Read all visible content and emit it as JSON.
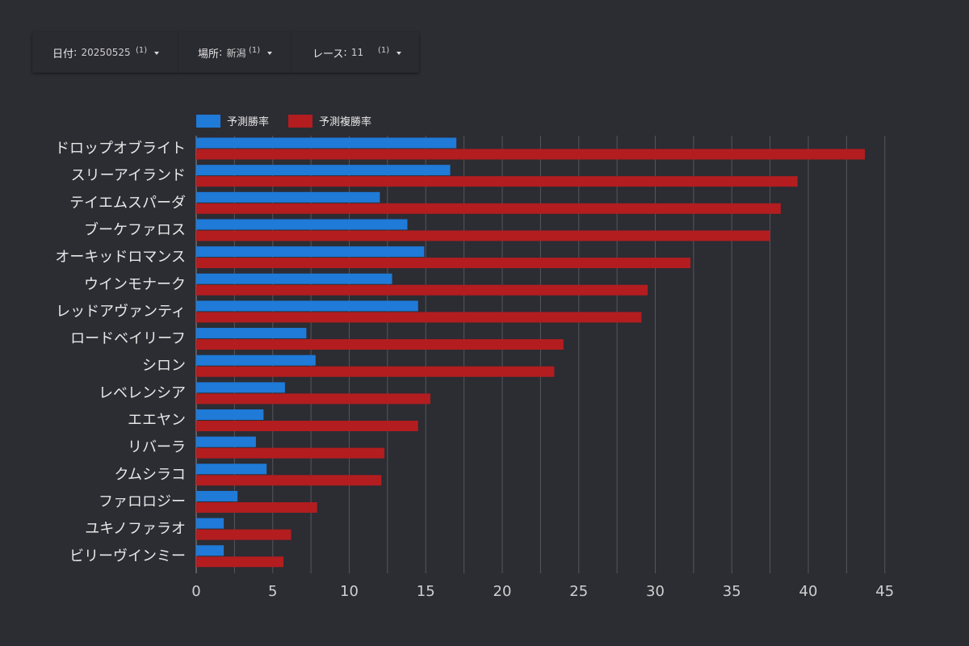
{
  "filters": [
    {
      "label": "日付",
      "value": "20250525",
      "count": "(1)"
    },
    {
      "label": "場所",
      "value": "新潟",
      "count": "(1)"
    },
    {
      "label": "レース",
      "value": "11",
      "count": "(1)"
    }
  ],
  "colors": {
    "background": "#2c2c33",
    "win": "#1f7ad8",
    "place": "#b31d1f",
    "grid": "#55555d"
  },
  "chart_data": {
    "type": "bar",
    "orientation": "horizontal",
    "title": "",
    "xlabel": "",
    "ylabel": "",
    "xlim": [
      0,
      45
    ],
    "xticks": [
      0,
      5,
      10,
      15,
      20,
      25,
      30,
      35,
      40,
      45
    ],
    "grid": true,
    "legend_position": "top-left",
    "categories": [
      "ドロップオブライト",
      "スリーアイランド",
      "テイエムスパーダ",
      "ブーケファロス",
      "オーキッドロマンス",
      "ウインモナーク",
      "レッドアヴァンティ",
      "ロードベイリーフ",
      "シロン",
      "レベレンシア",
      "エエヤン",
      "リバーラ",
      "クムシラコ",
      "ファロロジー",
      "ユキノファラオ",
      "ビリーヴインミー"
    ],
    "series": [
      {
        "name": "予測勝率",
        "color": "#1f7ad8",
        "values": [
          17.0,
          16.6,
          12.0,
          13.8,
          14.9,
          12.8,
          14.5,
          7.2,
          7.8,
          5.8,
          4.4,
          3.9,
          4.6,
          2.7,
          1.8,
          1.8
        ]
      },
      {
        "name": "予測複勝率",
        "color": "#b31d1f",
        "values": [
          43.7,
          39.3,
          38.2,
          37.5,
          32.3,
          29.5,
          29.1,
          24.0,
          23.4,
          15.3,
          14.5,
          12.3,
          12.1,
          7.9,
          6.2,
          5.7
        ]
      }
    ]
  }
}
